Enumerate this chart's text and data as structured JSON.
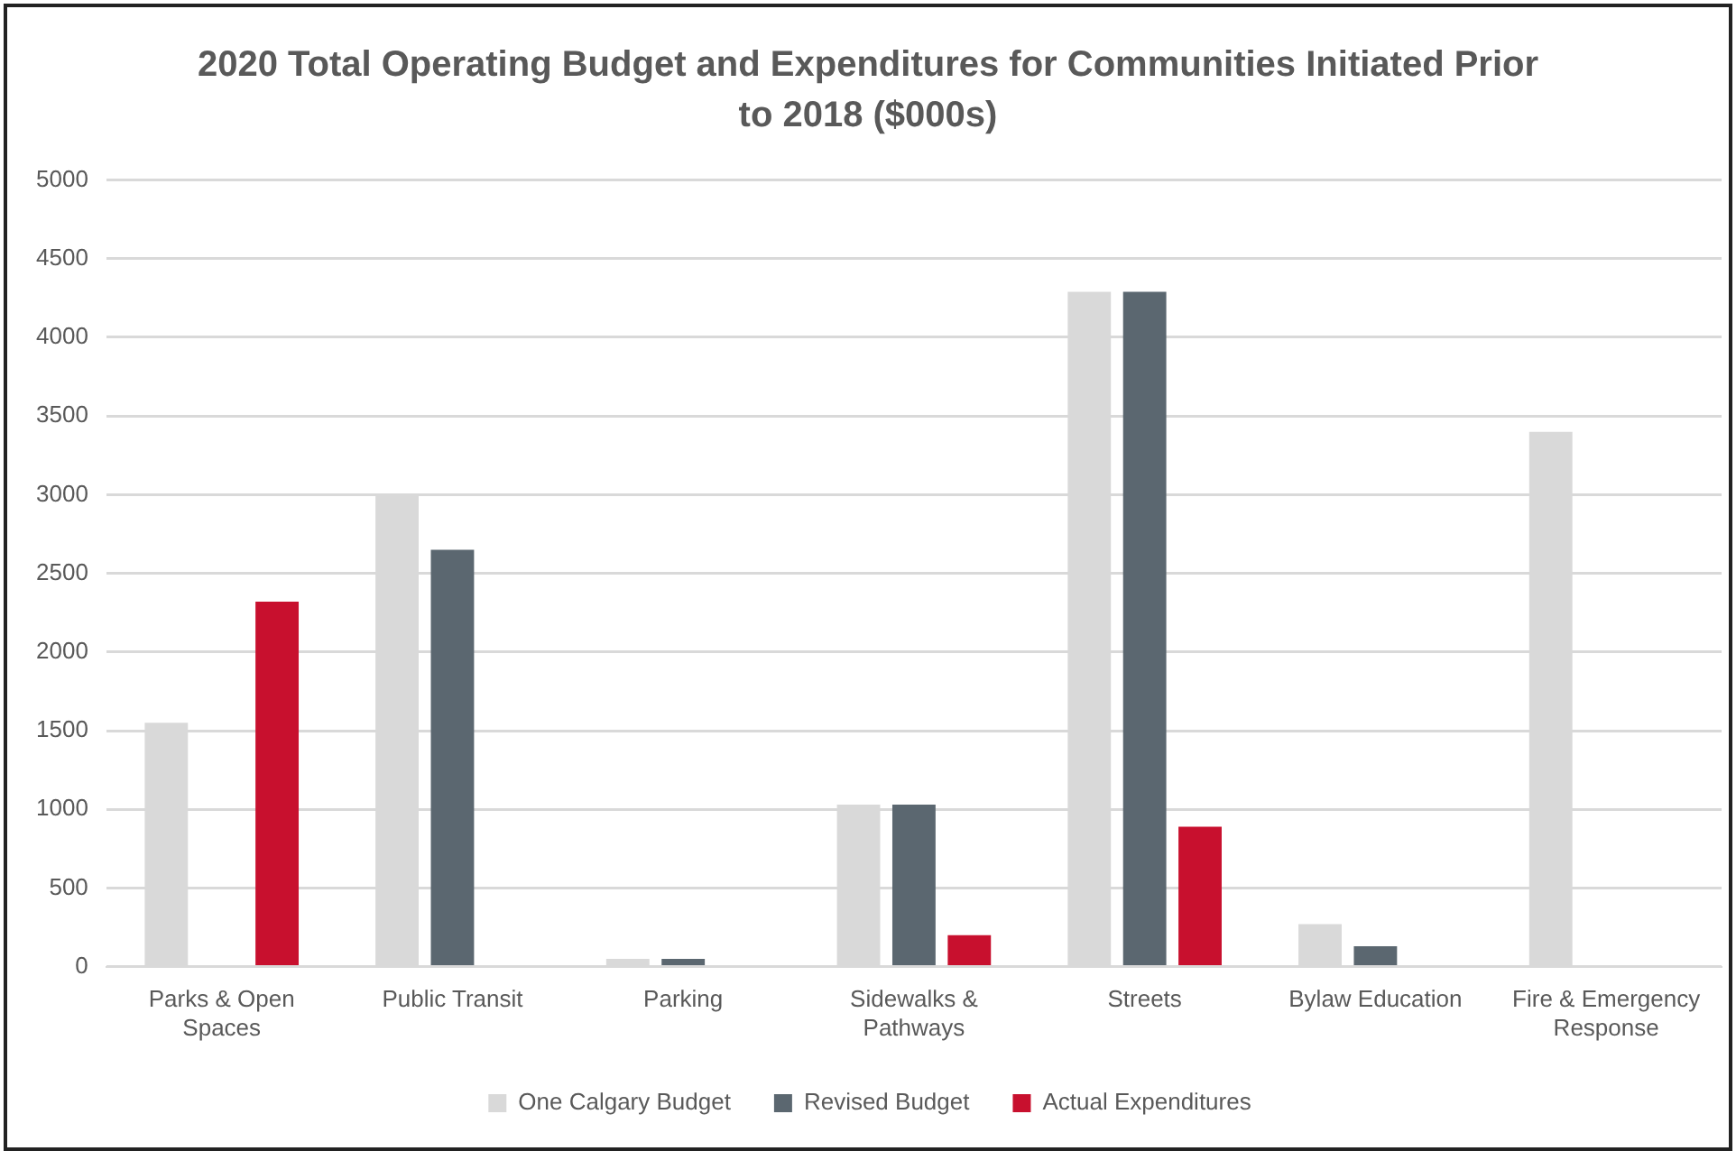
{
  "chart_data": {
    "type": "bar",
    "title": "2020 Total Operating Budget and Expenditures for Communities Initiated Prior to 2018 ($000s)",
    "categories": [
      "Parks & Open Spaces",
      "Public Transit",
      "Parking",
      "Sidewalks & Pathways",
      "Streets",
      "Bylaw Education",
      "Fire & Emergency Response"
    ],
    "series": [
      {
        "name": "One Calgary Budget",
        "color": "#d9d9d9",
        "values": [
          1550,
          3000,
          50,
          1030,
          4290,
          270,
          3400
        ]
      },
      {
        "name": "Revised Budget",
        "color": "#5b6770",
        "values": [
          null,
          2650,
          50,
          1030,
          4290,
          130,
          null
        ]
      },
      {
        "name": "Actual Expenditures",
        "color": "#c8102e",
        "values": [
          2320,
          null,
          null,
          200,
          890,
          null,
          null
        ]
      }
    ],
    "ylim": [
      0,
      5000
    ],
    "yticks": [
      0,
      500,
      1000,
      1500,
      2000,
      2500,
      3000,
      3500,
      4000,
      4500,
      5000
    ],
    "grid": "y",
    "legend": "bottom"
  }
}
